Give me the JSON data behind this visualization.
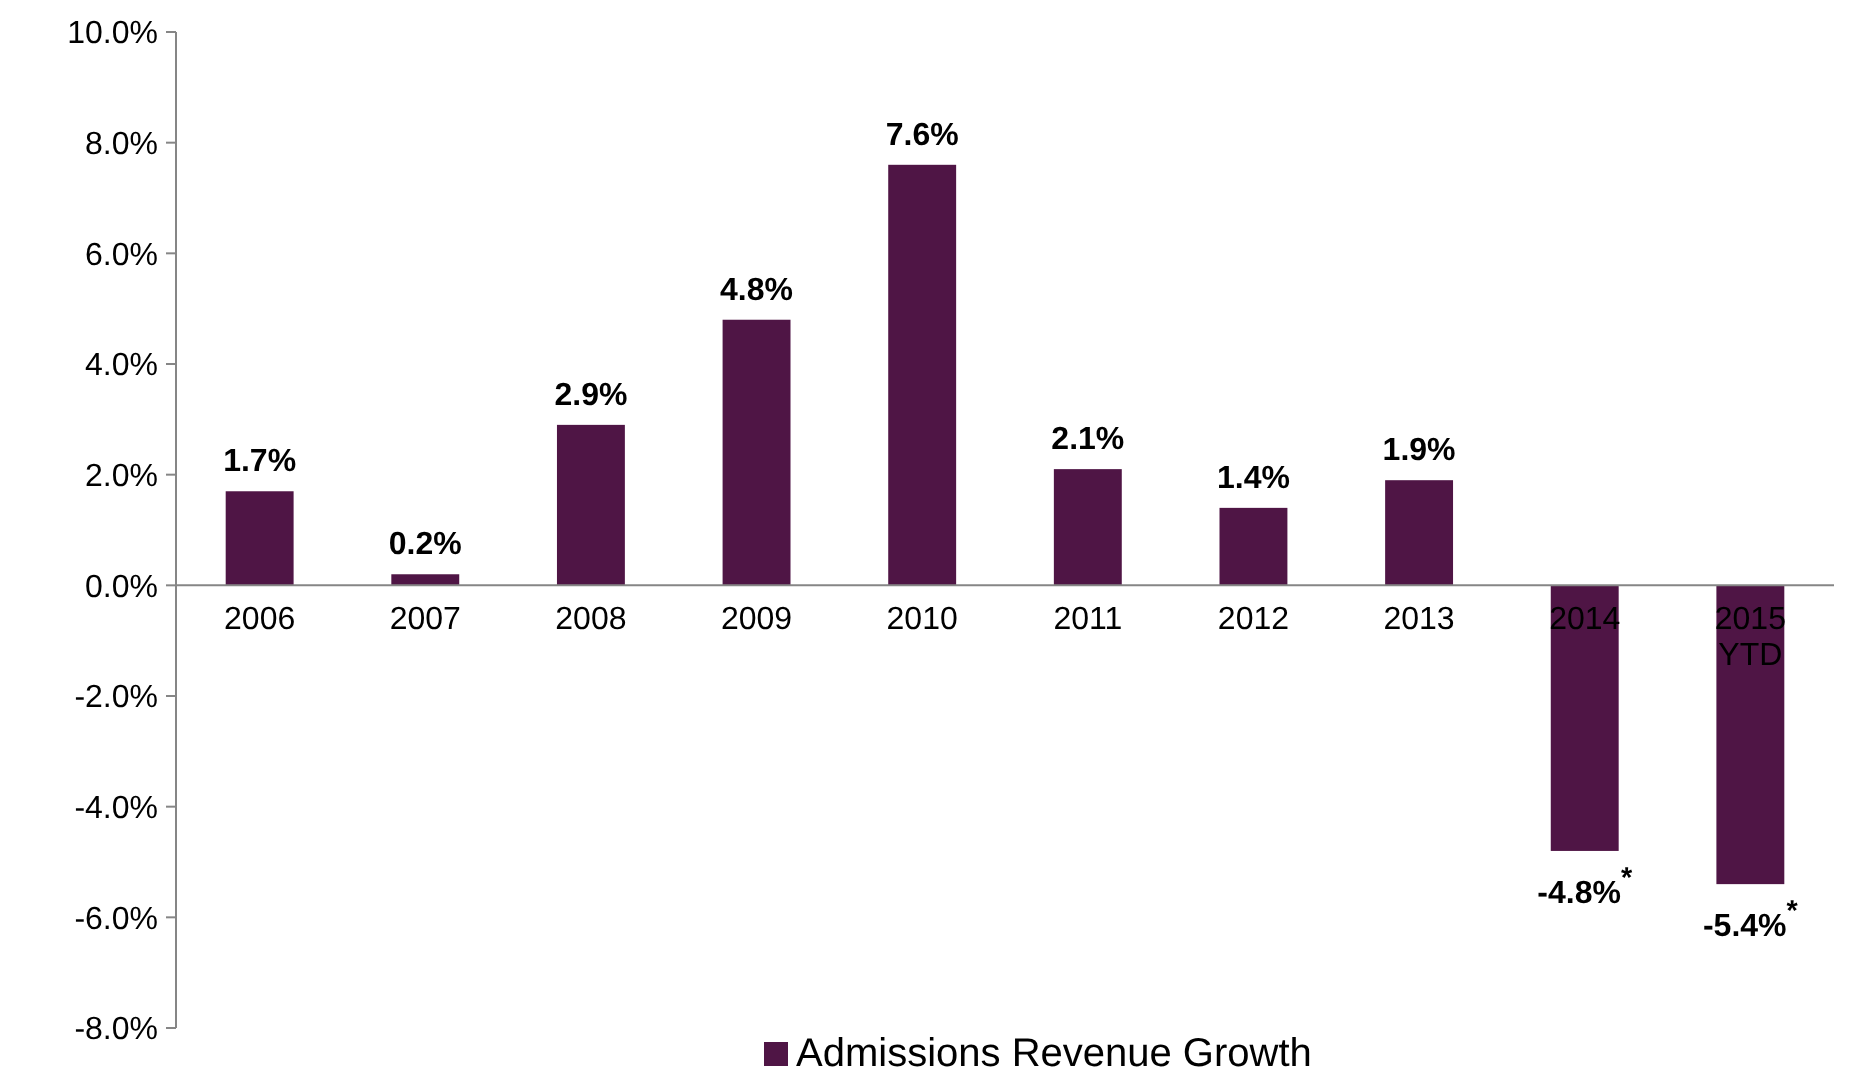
{
  "chart_data": {
    "type": "bar",
    "categories": [
      "2006",
      "2007",
      "2008",
      "2009",
      "2010",
      "2011",
      "2012",
      "2013",
      "2014",
      "2015 YTD"
    ],
    "series": [
      {
        "name": "Admissions Revenue Growth",
        "color": "#4f1545",
        "values": [
          1.7,
          0.2,
          2.9,
          4.8,
          7.6,
          2.1,
          1.4,
          1.9,
          -4.8,
          -5.4
        ]
      }
    ],
    "value_labels": [
      "1.7%",
      "0.2%",
      "2.9%",
      "4.8%",
      "7.6%",
      "2.1%",
      "1.4%",
      "1.9%",
      "-4.8%$^{*}$",
      "-5.4%$^{*}$"
    ],
    "ylim": [
      -8,
      10
    ],
    "yticks": [
      {
        "value": -8,
        "label": "-8.0%"
      },
      {
        "value": -6,
        "label": "-6.0%"
      },
      {
        "value": -4,
        "label": "-4.0%"
      },
      {
        "value": -2,
        "label": "-2.0%"
      },
      {
        "value": 0,
        "label": "0.0%"
      },
      {
        "value": 2,
        "label": "2.0%"
      },
      {
        "value": 4,
        "label": "4.0%"
      },
      {
        "value": 6,
        "label": "6.0%"
      },
      {
        "value": 8,
        "label": "8.0%"
      },
      {
        "value": 10,
        "label": "10.0%"
      }
    ],
    "grid": false,
    "legend": "bottom"
  }
}
